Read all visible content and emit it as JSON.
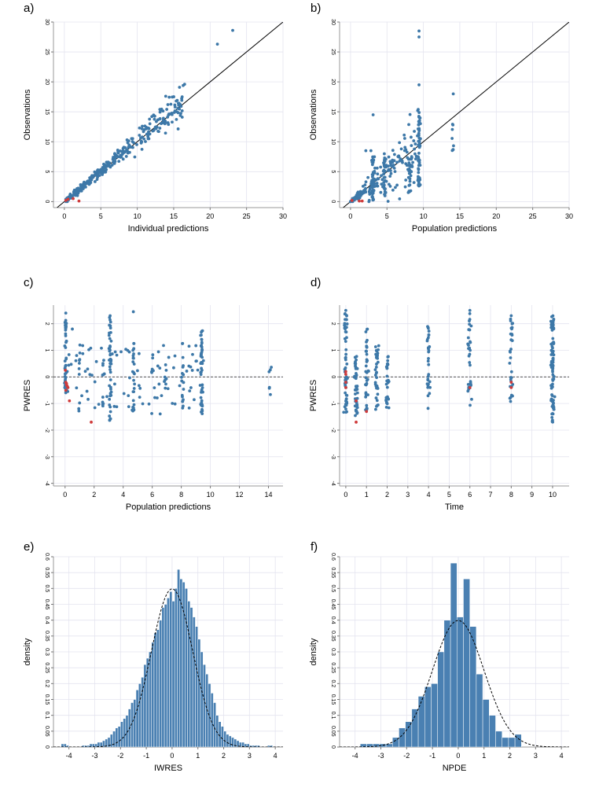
{
  "colors": {
    "point": "#3d78a8",
    "censored": "#cf3b3b",
    "bar": "#4a80b2",
    "bar_edge": "#ffffff"
  },
  "chart_data": [
    {
      "id": "a",
      "type": "scatter",
      "letter": "a)",
      "xlabel": "Individual predictions",
      "ylabel": "Observations",
      "xlim": [
        -1.5,
        30
      ],
      "ylim": [
        -1,
        30
      ],
      "xticks": [
        0,
        5,
        10,
        15,
        20,
        25,
        30
      ],
      "yticks": [
        0,
        5,
        10,
        15,
        20,
        25,
        30
      ],
      "xtick_labels": [
        "0",
        "5",
        "10",
        "15",
        "20",
        "25",
        "30"
      ],
      "ytick_labels": [
        "0",
        "5",
        "10",
        "15",
        "20",
        "25",
        "30"
      ],
      "identity_line": true,
      "zero_line": false,
      "gen": {
        "kind": "ind",
        "n": 360,
        "seed": 11
      },
      "points": [
        [
          21.0,
          26.3
        ],
        [
          23.1,
          28.6
        ],
        [
          16.5,
          19.6
        ],
        [
          15.8,
          19.1
        ],
        [
          14.2,
          16.2
        ],
        [
          13.1,
          15.4
        ],
        [
          16.3,
          19.4
        ],
        [
          12.0,
          14.2
        ],
        [
          15.2,
          15.8
        ],
        [
          11.5,
          12.3
        ]
      ],
      "censored": [
        [
          0.2,
          0.2
        ],
        [
          0.5,
          0.4
        ],
        [
          1.2,
          0.5
        ],
        [
          2.0,
          0.1
        ]
      ]
    },
    {
      "id": "b",
      "type": "scatter",
      "letter": "b)",
      "xlabel": "Population predictions",
      "ylabel": "Observations",
      "xlim": [
        -1.5,
        30
      ],
      "ylim": [
        -1,
        30
      ],
      "xticks": [
        0,
        5,
        10,
        15,
        20,
        25,
        30
      ],
      "yticks": [
        0,
        5,
        10,
        15,
        20,
        25,
        30
      ],
      "xtick_labels": [
        "0",
        "5",
        "10",
        "15",
        "20",
        "25",
        "30"
      ],
      "ytick_labels": [
        "0",
        "5",
        "10",
        "15",
        "20",
        "25",
        "30"
      ],
      "identity_line": true,
      "zero_line": false,
      "gen": {
        "kind": "pop",
        "columns": [
          [
            3.1,
            48,
            0.2,
            7.5
          ],
          [
            9.4,
            70,
            2.5,
            15.5
          ],
          [
            8.1,
            22,
            1.5,
            9.0
          ],
          [
            4.7,
            25,
            0.8,
            8.0
          ],
          [
            14.1,
            8,
            8.5,
            14.0
          ]
        ],
        "n": 180,
        "seed": 23
      },
      "points": [
        [
          9.4,
          28.5
        ],
        [
          9.4,
          27.5
        ],
        [
          14.1,
          18.0
        ],
        [
          9.4,
          19.5
        ],
        [
          3.1,
          14.5
        ],
        [
          2.1,
          8.5
        ],
        [
          2.8,
          8.5
        ]
      ],
      "censored": [
        [
          0.2,
          0.2
        ],
        [
          1.2,
          0.1
        ],
        [
          1.6,
          0.1
        ]
      ]
    },
    {
      "id": "c",
      "type": "scatter",
      "letter": "c)",
      "xlabel": "Population predictions",
      "ylabel": "PWRES",
      "xlim": [
        -0.8,
        15
      ],
      "ylim": [
        -4.1,
        2.7
      ],
      "xticks": [
        0,
        2,
        4,
        6,
        8,
        10,
        12,
        14
      ],
      "yticks": [
        -4,
        -3,
        -2,
        -1,
        0,
        1,
        2
      ],
      "xtick_labels": [
        "0",
        "2",
        "4",
        "6",
        "8",
        "10",
        "12",
        "14"
      ],
      "ytick_labels": [
        "-4",
        "-3",
        "-2",
        "-1",
        "0",
        "1",
        "2"
      ],
      "identity_line": false,
      "zero_line": true,
      "gen": {
        "kind": "res",
        "columns": [
          [
            0.05,
            45,
            -0.6,
            2.2
          ],
          [
            3.1,
            45,
            -1.7,
            2.3
          ],
          [
            9.4,
            50,
            -1.5,
            1.8
          ],
          [
            4.7,
            25,
            -1.3,
            1.6
          ],
          [
            8.1,
            18,
            -1.2,
            1.3
          ],
          [
            14.1,
            6,
            -0.8,
            0.4
          ],
          [
            6.9,
            6,
            -0.5,
            0.8
          ],
          [
            6.0,
            6,
            -0.9,
            0.9
          ],
          [
            1.0,
            8,
            -1.4,
            1.2
          ],
          [
            2.6,
            10,
            -1.3,
            0.8
          ]
        ],
        "n": 90,
        "xspread": [
          0,
          10
        ],
        "seed": 37
      },
      "points": [
        [
          0.05,
          2.4
        ],
        [
          4.7,
          2.45
        ],
        [
          0.5,
          1.8
        ],
        [
          3.1,
          2.3
        ]
      ],
      "censored": [
        [
          0.05,
          -0.2
        ],
        [
          0.1,
          -0.3
        ],
        [
          0.2,
          -0.4
        ],
        [
          0.05,
          -0.5
        ],
        [
          0.3,
          -0.9
        ],
        [
          1.8,
          -1.7
        ],
        [
          0.1,
          -0.25
        ],
        [
          0.15,
          -0.35
        ],
        [
          0.02,
          0.25
        ]
      ]
    },
    {
      "id": "d",
      "type": "scatter",
      "letter": "d)",
      "xlabel": "Time",
      "ylabel": "PWRES",
      "xlim": [
        -0.3,
        10.8
      ],
      "ylim": [
        -4.1,
        2.7
      ],
      "xticks": [
        0,
        1,
        2,
        3,
        4,
        5,
        6,
        7,
        8,
        9,
        10
      ],
      "yticks": [
        -4,
        -3,
        -2,
        -1,
        0,
        1,
        2
      ],
      "xtick_labels": [
        "0",
        "1",
        "2",
        "3",
        "4",
        "5",
        "6",
        "7",
        "8",
        "9",
        "10"
      ],
      "ytick_labels": [
        "-4",
        "-3",
        "-2",
        "-1",
        "0",
        "1",
        "2"
      ],
      "identity_line": false,
      "zero_line": true,
      "gen": {
        "kind": "res",
        "columns": [
          [
            0.0,
            60,
            -1.4,
            2.4
          ],
          [
            0.5,
            45,
            -1.6,
            0.8
          ],
          [
            1.0,
            40,
            -1.3,
            1.8
          ],
          [
            1.5,
            35,
            -1.4,
            1.2
          ],
          [
            2.0,
            30,
            -1.2,
            0.9
          ],
          [
            4.0,
            30,
            -1.2,
            1.9
          ],
          [
            6.0,
            30,
            -1.1,
            2.4
          ],
          [
            8.0,
            30,
            -1.0,
            2.2
          ],
          [
            10.0,
            90,
            -1.7,
            2.3
          ]
        ],
        "n": 0,
        "xspread": [
          0,
          0
        ],
        "seed": 41
      },
      "points": [
        [
          0.0,
          2.5
        ],
        [
          6.0,
          2.5
        ],
        [
          8.0,
          2.3
        ]
      ],
      "censored": [
        [
          0.0,
          0.2
        ],
        [
          0.0,
          -0.2
        ],
        [
          0.0,
          -0.4
        ],
        [
          0.0,
          0.1
        ],
        [
          0.5,
          -1.7
        ],
        [
          6.0,
          -0.4
        ],
        [
          8.0,
          -0.2
        ],
        [
          8.0,
          -0.4
        ],
        [
          0.5,
          -0.9
        ],
        [
          1.0,
          -1.3
        ]
      ]
    },
    {
      "id": "e",
      "type": "bar",
      "letter": "e)",
      "xlabel": "IWRES",
      "ylabel": "density",
      "xlim": [
        -4.6,
        4.3
      ],
      "ylim": [
        0,
        0.6
      ],
      "xticks": [
        -4,
        -3,
        -2,
        -1,
        0,
        1,
        2,
        3,
        4
      ],
      "yticks": [
        0,
        0.05,
        0.1,
        0.15,
        0.2,
        0.25,
        0.3,
        0.35,
        0.4,
        0.45,
        0.5,
        0.55,
        0.6
      ],
      "xtick_labels": [
        "-4",
        "-3",
        "-2",
        "-1",
        "0",
        "1",
        "2",
        "3",
        "4"
      ],
      "ytick_labels": [
        "0",
        "0.05",
        "0.1",
        "0.15",
        "0.2",
        "0.25",
        "0.3",
        "0.35",
        "0.4",
        "0.45",
        "0.5",
        "0.55",
        "0.6"
      ],
      "bin_start": -4.3,
      "bin_width": 0.1,
      "values": [
        0.01,
        0.01,
        0.005,
        0,
        0,
        0,
        0,
        0,
        0.005,
        0.005,
        0.005,
        0.01,
        0.01,
        0.01,
        0.015,
        0.015,
        0.02,
        0.025,
        0.03,
        0.04,
        0.05,
        0.06,
        0.065,
        0.08,
        0.09,
        0.1,
        0.12,
        0.14,
        0.15,
        0.18,
        0.2,
        0.22,
        0.26,
        0.28,
        0.3,
        0.33,
        0.36,
        0.37,
        0.4,
        0.44,
        0.45,
        0.47,
        0.49,
        0.46,
        0.5,
        0.56,
        0.53,
        0.52,
        0.5,
        0.46,
        0.44,
        0.41,
        0.38,
        0.34,
        0.3,
        0.26,
        0.23,
        0.2,
        0.17,
        0.14,
        0.1,
        0.08,
        0.065,
        0.05,
        0.04,
        0.035,
        0.03,
        0.025,
        0.02,
        0.015,
        0.015,
        0.01,
        0.01,
        0.005,
        0.005,
        0.005,
        0.005,
        0,
        0,
        0,
        0.005,
        0.005
      ],
      "curve": {
        "mean": 0,
        "sd": 0.8
      }
    },
    {
      "id": "f",
      "type": "bar",
      "letter": "f)",
      "xlabel": "NPDE",
      "ylabel": "density",
      "xlim": [
        -4.6,
        4.3
      ],
      "ylim": [
        0,
        0.6
      ],
      "xticks": [
        -4,
        -3,
        -2,
        -1,
        0,
        1,
        2,
        3,
        4
      ],
      "yticks": [
        0,
        0.05,
        0.1,
        0.15,
        0.2,
        0.25,
        0.3,
        0.35,
        0.4,
        0.45,
        0.5,
        0.55,
        0.6
      ],
      "xtick_labels": [
        "-4",
        "-3",
        "-2",
        "-1",
        "0",
        "1",
        "2",
        "3",
        "4"
      ],
      "ytick_labels": [
        "0",
        "0.05",
        "0.1",
        "0.15",
        "0.2",
        "0.25",
        "0.3",
        "0.35",
        "0.4",
        "0.45",
        "0.5",
        "0.55",
        "0.6"
      ],
      "bin_start": -3.8,
      "bin_width": 0.25,
      "values": [
        0.01,
        0.01,
        0.01,
        0.01,
        0.01,
        0.03,
        0.06,
        0.08,
        0.12,
        0.16,
        0.19,
        0.2,
        0.3,
        0.4,
        0.58,
        0.41,
        0.53,
        0.38,
        0.23,
        0.15,
        0.1,
        0.05,
        0.03,
        0.03,
        0.04
      ],
      "curve": {
        "mean": 0,
        "sd": 1
      }
    }
  ]
}
